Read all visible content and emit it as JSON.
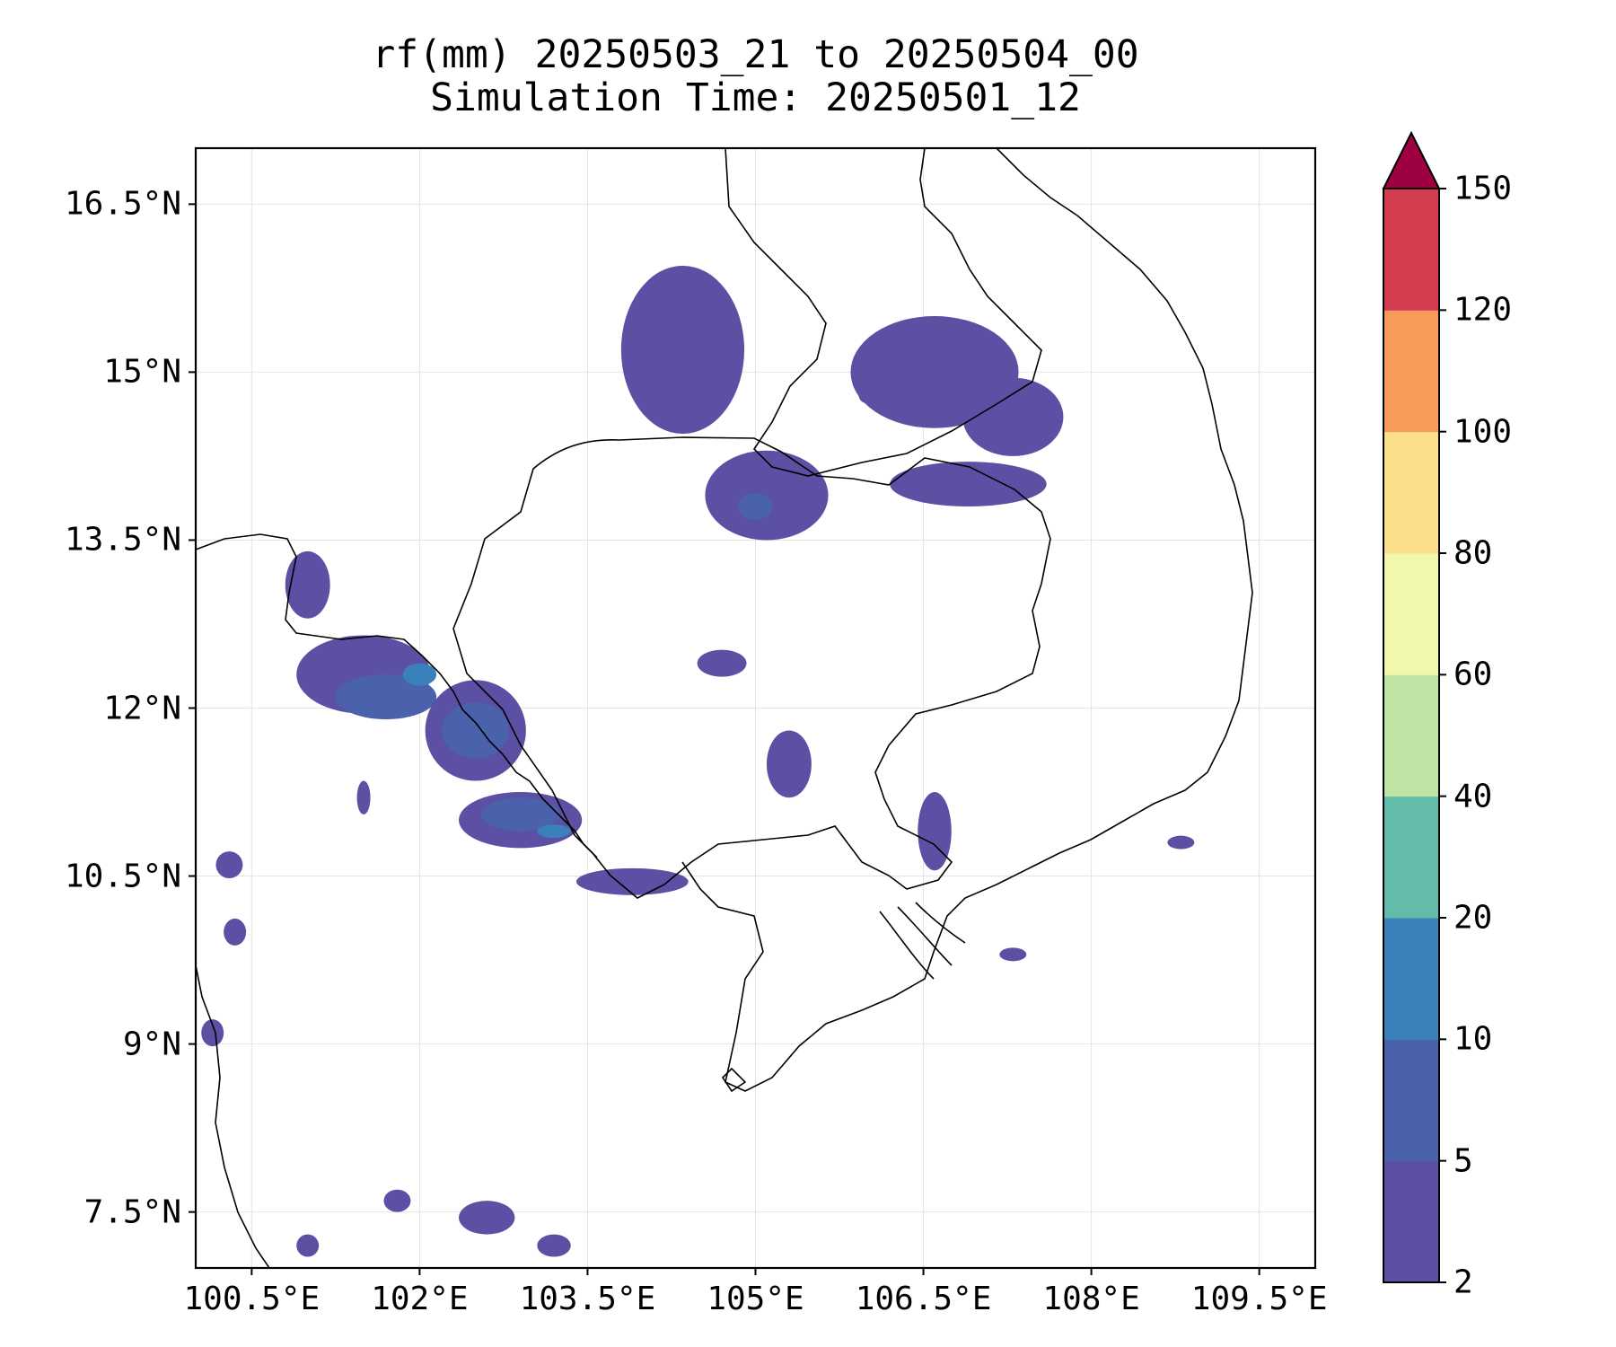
{
  "title": {
    "line1": "rf(mm) 20250503_21 to 20250504_00",
    "line2": "Simulation Time: 20250501_12"
  },
  "map": {
    "lon_range": [
      100.0,
      110.0
    ],
    "lat_range": [
      7.0,
      17.0
    ],
    "gridlines": true,
    "x_ticks": [
      {
        "value": 100.5,
        "label": "100.5°E"
      },
      {
        "value": 102.0,
        "label": "102°E"
      },
      {
        "value": 103.5,
        "label": "103.5°E"
      },
      {
        "value": 105.0,
        "label": "105°E"
      },
      {
        "value": 106.5,
        "label": "106.5°E"
      },
      {
        "value": 108.0,
        "label": "108°E"
      },
      {
        "value": 109.5,
        "label": "109.5°E"
      }
    ],
    "y_ticks": [
      {
        "value": 16.5,
        "label": "16.5°N"
      },
      {
        "value": 15.0,
        "label": "15°N"
      },
      {
        "value": 13.5,
        "label": "13.5°N"
      },
      {
        "value": 12.0,
        "label": "12°N"
      },
      {
        "value": 10.5,
        "label": "10.5°N"
      },
      {
        "value": 9.0,
        "label": "9°N"
      },
      {
        "value": 7.5,
        "label": "7.5°N"
      }
    ]
  },
  "colorbar": {
    "extend": "max",
    "levels": [
      {
        "label": "2",
        "color": "#5b50a3"
      },
      {
        "label": "5",
        "color": "#4a62ac"
      },
      {
        "label": "10",
        "color": "#3a80bb"
      },
      {
        "label": "20",
        "color": "#63bca9"
      },
      {
        "label": "40",
        "color": "#bee3a2"
      },
      {
        "label": "60",
        "color": "#f1f8ab"
      },
      {
        "label": "80",
        "color": "#fbdf8c"
      },
      {
        "label": "100",
        "color": "#f99c5b"
      },
      {
        "label": "120",
        "color": "#d53e50"
      },
      {
        "label": "150",
        "color": "#9e0142"
      }
    ]
  },
  "rain_regions": [
    {
      "level": 0,
      "lon": 104.35,
      "lat": 15.2,
      "rx": 0.55,
      "ry": 0.75
    },
    {
      "level": 0,
      "lon": 105.1,
      "lat": 13.9,
      "rx": 0.55,
      "ry": 0.4
    },
    {
      "level": 1,
      "lon": 105.0,
      "lat": 13.8,
      "rx": 0.15,
      "ry": 0.12
    },
    {
      "level": 0,
      "lon": 106.6,
      "lat": 15.0,
      "rx": 0.75,
      "ry": 0.5
    },
    {
      "level": 0,
      "lon": 107.3,
      "lat": 14.6,
      "rx": 0.45,
      "ry": 0.35
    },
    {
      "level": 0,
      "lon": 106.9,
      "lat": 14.0,
      "rx": 0.7,
      "ry": 0.2
    },
    {
      "level": 0,
      "lon": 104.7,
      "lat": 12.4,
      "rx": 0.22,
      "ry": 0.12
    },
    {
      "level": 0,
      "lon": 105.3,
      "lat": 11.5,
      "rx": 0.2,
      "ry": 0.3
    },
    {
      "level": 0,
      "lon": 106.6,
      "lat": 10.9,
      "rx": 0.15,
      "ry": 0.35
    },
    {
      "level": 0,
      "lon": 101.5,
      "lat": 12.3,
      "rx": 0.6,
      "ry": 0.35
    },
    {
      "level": 1,
      "lon": 101.7,
      "lat": 12.1,
      "rx": 0.45,
      "ry": 0.2
    },
    {
      "level": 0,
      "lon": 102.5,
      "lat": 11.8,
      "rx": 0.45,
      "ry": 0.45
    },
    {
      "level": 1,
      "lon": 102.5,
      "lat": 11.8,
      "rx": 0.3,
      "ry": 0.25
    },
    {
      "level": 0,
      "lon": 102.9,
      "lat": 11.0,
      "rx": 0.55,
      "ry": 0.25
    },
    {
      "level": 1,
      "lon": 102.9,
      "lat": 11.05,
      "rx": 0.35,
      "ry": 0.15
    },
    {
      "level": 2,
      "lon": 102.0,
      "lat": 12.3,
      "rx": 0.15,
      "ry": 0.1
    },
    {
      "level": 2,
      "lon": 103.2,
      "lat": 10.9,
      "rx": 0.15,
      "ry": 0.06
    },
    {
      "level": 0,
      "lon": 103.9,
      "lat": 10.45,
      "rx": 0.5,
      "ry": 0.12
    },
    {
      "level": 0,
      "lon": 101.0,
      "lat": 13.1,
      "rx": 0.2,
      "ry": 0.3
    },
    {
      "level": 0,
      "lon": 100.3,
      "lat": 10.6,
      "rx": 0.12,
      "ry": 0.12
    },
    {
      "level": 0,
      "lon": 100.35,
      "lat": 10.0,
      "rx": 0.1,
      "ry": 0.12
    },
    {
      "level": 0,
      "lon": 100.15,
      "lat": 9.1,
      "rx": 0.1,
      "ry": 0.12
    },
    {
      "level": 0,
      "lon": 101.8,
      "lat": 7.6,
      "rx": 0.12,
      "ry": 0.1
    },
    {
      "level": 0,
      "lon": 102.6,
      "lat": 7.45,
      "rx": 0.25,
      "ry": 0.15
    },
    {
      "level": 0,
      "lon": 103.2,
      "lat": 7.2,
      "rx": 0.15,
      "ry": 0.1
    },
    {
      "level": 0,
      "lon": 101.0,
      "lat": 7.2,
      "rx": 0.1,
      "ry": 0.1
    },
    {
      "level": 0,
      "lon": 108.8,
      "lat": 10.8,
      "rx": 0.12,
      "ry": 0.06
    },
    {
      "level": 0,
      "lon": 107.3,
      "lat": 9.8,
      "rx": 0.12,
      "ry": 0.06
    },
    {
      "level": 0,
      "lon": 101.5,
      "lat": 11.2,
      "rx": 0.06,
      "ry": 0.15
    },
    {
      "level": 0,
      "lon": 106.0,
      "lat": 14.8,
      "rx": 0.08,
      "ry": 0.08
    }
  ]
}
